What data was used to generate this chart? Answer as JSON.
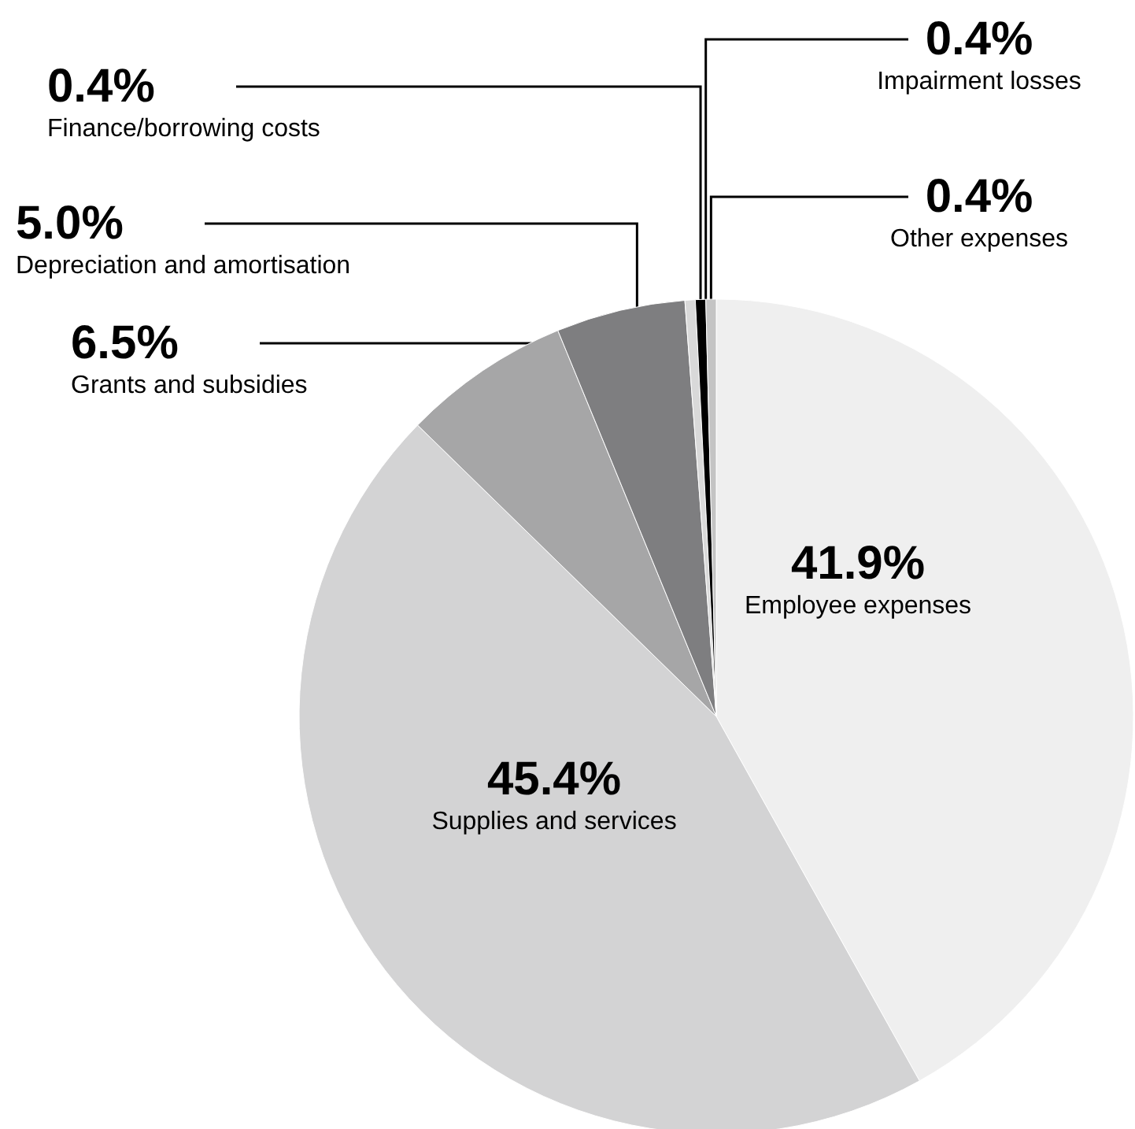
{
  "chart_data": {
    "type": "pie",
    "categories": [
      "Employee expenses",
      "Supplies and services",
      "Grants and subsidies",
      "Depreciation and amortisation",
      "Finance/borrowing costs",
      "Impairment losses",
      "Other expenses"
    ],
    "values": [
      41.9,
      45.4,
      6.5,
      5.0,
      0.4,
      0.4,
      0.4
    ],
    "value_labels": [
      "41.9%",
      "45.4%",
      "6.5%",
      "5.0%",
      "0.4%",
      "0.4%",
      "0.4%"
    ],
    "colors": [
      "#efefef",
      "#d3d3d4",
      "#a6a6a7",
      "#7e7e80",
      "#d9d9d9",
      "#000000",
      "#c4c4c4"
    ],
    "legend": false
  }
}
